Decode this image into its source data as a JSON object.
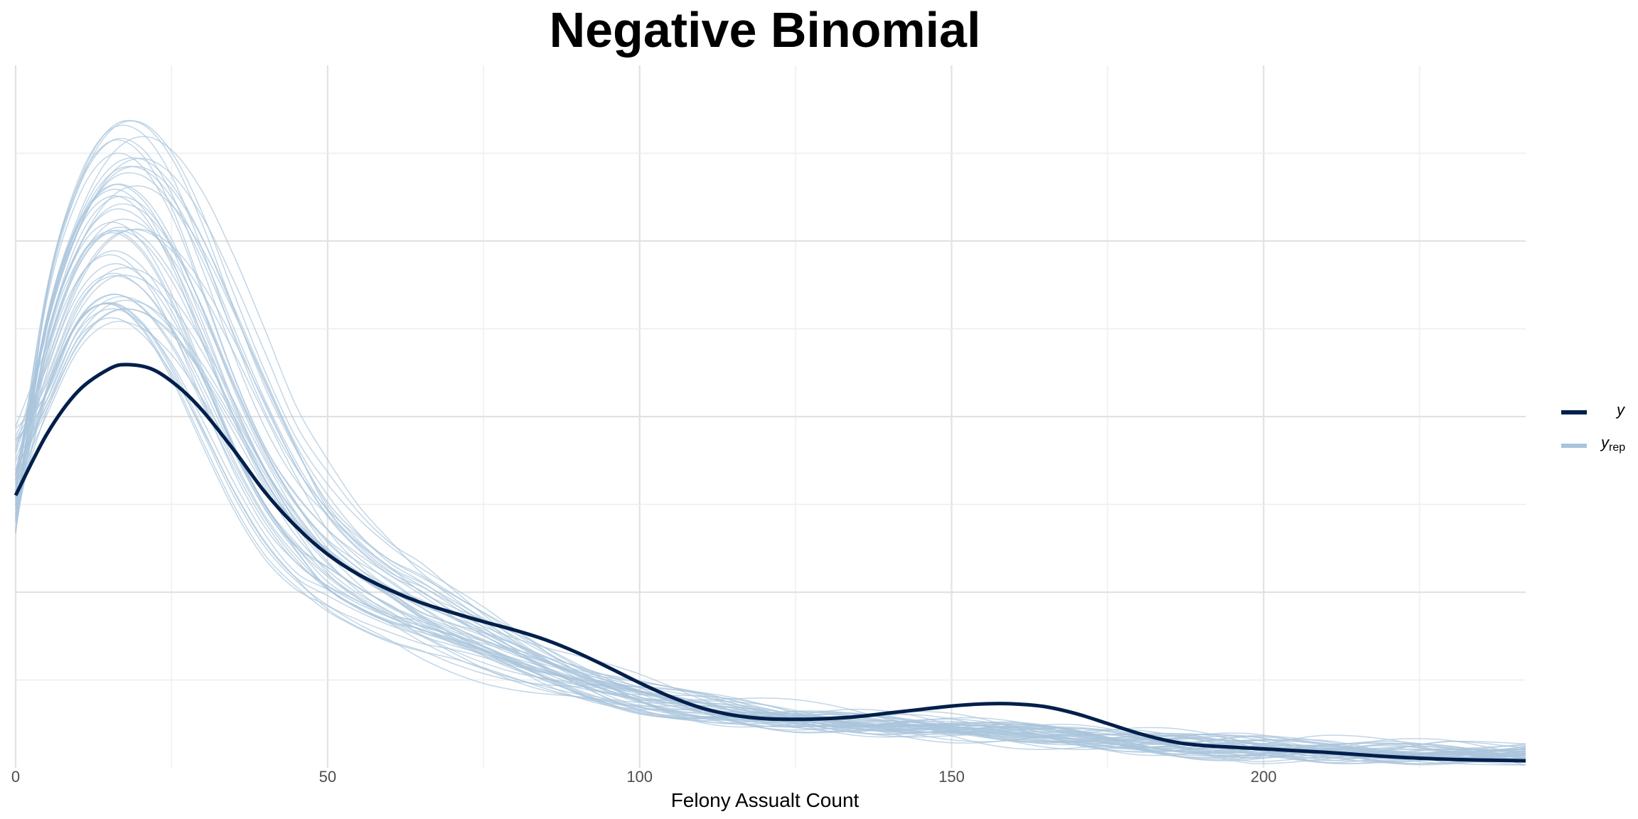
{
  "chart_data": {
    "type": "line",
    "title": "Negative Binomial",
    "xlabel": "Felony Assualt Count",
    "ylabel": "",
    "x_ticks": [
      0,
      50,
      100,
      150,
      200
    ],
    "xlim": [
      0,
      242
    ],
    "ylim": [
      0,
      1
    ],
    "y_ticks_shown": false,
    "grid": true,
    "legend": {
      "placement": "right",
      "entries": [
        {
          "label": "y",
          "color": "#011f4b"
        },
        {
          "label": "y",
          "subscript": "rep",
          "color": "#a9c4dc"
        }
      ]
    },
    "series": [
      {
        "name": "y",
        "color": "#011f4b",
        "x": [
          0,
          5,
          10,
          15,
          18,
          22,
          26,
          30,
          35,
          40,
          45,
          50,
          55,
          60,
          65,
          70,
          75,
          80,
          85,
          90,
          95,
          100,
          105,
          110,
          115,
          120,
          125,
          130,
          135,
          140,
          145,
          150,
          155,
          160,
          165,
          170,
          175,
          180,
          185,
          190,
          200,
          210,
          220,
          230,
          242
        ],
        "y": [
          0.388,
          0.475,
          0.536,
          0.568,
          0.574,
          0.567,
          0.543,
          0.508,
          0.452,
          0.392,
          0.343,
          0.304,
          0.275,
          0.253,
          0.235,
          0.221,
          0.208,
          0.196,
          0.182,
          0.164,
          0.143,
          0.121,
          0.101,
          0.085,
          0.075,
          0.07,
          0.069,
          0.07,
          0.073,
          0.078,
          0.083,
          0.088,
          0.091,
          0.091,
          0.087,
          0.077,
          0.063,
          0.049,
          0.038,
          0.032,
          0.027,
          0.022,
          0.016,
          0.012,
          0.01
        ]
      }
    ],
    "replicates": {
      "name": "y",
      "subscript": "rep",
      "color": "#a9c4dc",
      "count": 48,
      "x": [
        0,
        5,
        10,
        15,
        20,
        25,
        30,
        35,
        40,
        45,
        50,
        55,
        60,
        65,
        70,
        75,
        80,
        85,
        90,
        95,
        100,
        105,
        110,
        115,
        120,
        125,
        130,
        135,
        140,
        145,
        150,
        155,
        160,
        165,
        170,
        175,
        180,
        185,
        190,
        195,
        200,
        210,
        220,
        230,
        242
      ],
      "mean_y": [
        0.41,
        0.58,
        0.7,
        0.752,
        0.746,
        0.695,
        0.61,
        0.51,
        0.42,
        0.35,
        0.3,
        0.265,
        0.238,
        0.215,
        0.194,
        0.175,
        0.156,
        0.139,
        0.124,
        0.112,
        0.101,
        0.092,
        0.085,
        0.079,
        0.074,
        0.07,
        0.067,
        0.064,
        0.061,
        0.058,
        0.055,
        0.052,
        0.049,
        0.046,
        0.043,
        0.04,
        0.037,
        0.034,
        0.032,
        0.03,
        0.028,
        0.025,
        0.022,
        0.02,
        0.017
      ],
      "peak_range": [
        0.6,
        0.98
      ]
    }
  }
}
